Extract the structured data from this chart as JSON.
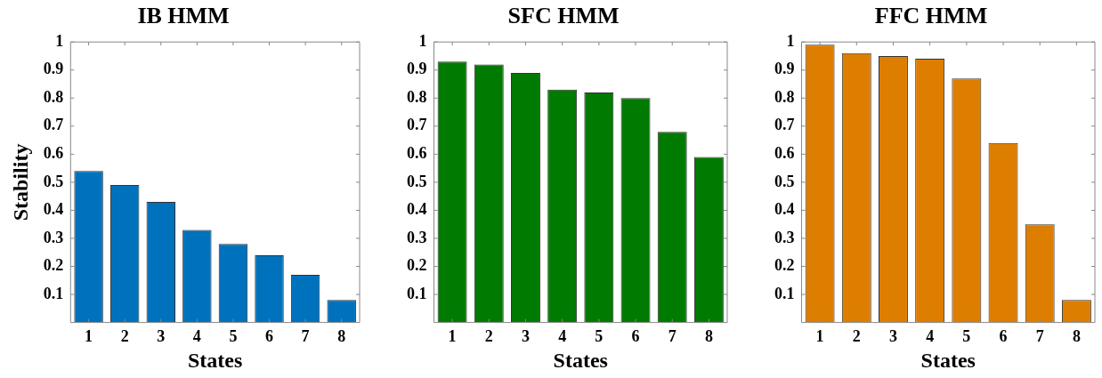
{
  "chart_data": [
    {
      "type": "bar",
      "title": "IB HMM",
      "xlabel": "States",
      "ylabel": "Stability",
      "categories": [
        "1",
        "2",
        "3",
        "4",
        "5",
        "6",
        "7",
        "8"
      ],
      "values": [
        0.54,
        0.49,
        0.43,
        0.33,
        0.28,
        0.24,
        0.17,
        0.08
      ],
      "color": "#0072bd",
      "ylim": [
        0,
        1
      ],
      "yticks": [
        0.1,
        0.2,
        0.3,
        0.4,
        0.5,
        0.6,
        0.7,
        0.8,
        0.9,
        1
      ]
    },
    {
      "type": "bar",
      "title": "SFC HMM",
      "xlabel": "States",
      "categories": [
        "1",
        "2",
        "3",
        "4",
        "5",
        "6",
        "7",
        "8"
      ],
      "values": [
        0.93,
        0.92,
        0.89,
        0.83,
        0.82,
        0.8,
        0.68,
        0.59
      ],
      "color": "#007a00",
      "ylim": [
        0,
        1
      ],
      "yticks": [
        0.1,
        0.2,
        0.3,
        0.4,
        0.5,
        0.6,
        0.7,
        0.8,
        0.9,
        1
      ]
    },
    {
      "type": "bar",
      "title": "FFC HMM",
      "xlabel": "States",
      "categories": [
        "1",
        "2",
        "3",
        "4",
        "5",
        "6",
        "7",
        "8"
      ],
      "values": [
        0.99,
        0.96,
        0.95,
        0.94,
        0.87,
        0.64,
        0.35,
        0.08
      ],
      "color": "#de7e00",
      "ylim": [
        0,
        1
      ],
      "yticks": [
        0.1,
        0.2,
        0.3,
        0.4,
        0.5,
        0.6,
        0.7,
        0.8,
        0.9,
        1
      ]
    }
  ]
}
